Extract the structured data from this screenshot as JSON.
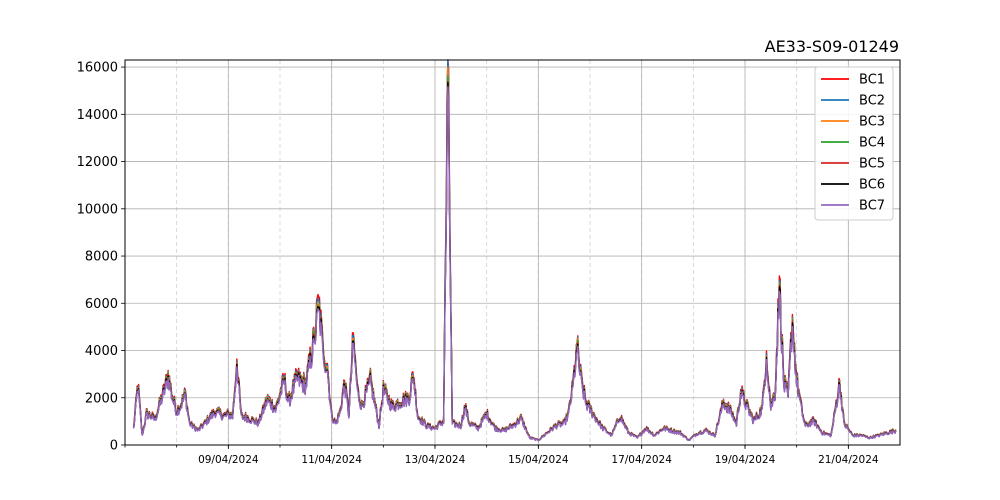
{
  "chart_data": {
    "type": "line",
    "title": "AE33-S09-01249",
    "xlabel": "",
    "ylabel": "",
    "x_start": "07/04/2024",
    "x_end": "21/04/2024",
    "xlim": [
      "07/04/2024",
      "22/04/2024"
    ],
    "ylim": [
      0,
      16300
    ],
    "y_ticks": [
      0,
      2000,
      4000,
      6000,
      8000,
      10000,
      12000,
      14000,
      16000
    ],
    "x_ticks": [
      "09/04/2024",
      "11/04/2024",
      "13/04/2024",
      "15/04/2024",
      "17/04/2024",
      "19/04/2024",
      "21/04/2024"
    ],
    "grid": true,
    "legend_position": "top-right",
    "series": [
      {
        "name": "BC1",
        "color": "#ff0000",
        "scale": 1.07
      },
      {
        "name": "BC2",
        "color": "#1f77b4",
        "scale": 1.05
      },
      {
        "name": "BC3",
        "color": "#ff7f0e",
        "scale": 1.03
      },
      {
        "name": "BC4",
        "color": "#2ca02c",
        "scale": 1.015
      },
      {
        "name": "BC5",
        "color": "#d62728",
        "scale": 1.0
      },
      {
        "name": "BC6",
        "color": "#000000",
        "scale": 0.99
      },
      {
        "name": "BC7",
        "color": "#9467bd",
        "scale": 0.97
      }
    ],
    "profile": [
      [
        "07/04/2024 04:00",
        700
      ],
      [
        "07/04/2024 06:00",
        2500
      ],
      [
        "07/04/2024 08:00",
        400
      ],
      [
        "07/04/2024 10:00",
        1300
      ],
      [
        "07/04/2024 14:00",
        1100
      ],
      [
        "07/04/2024 18:00",
        2200
      ],
      [
        "07/04/2024 20:00",
        2900
      ],
      [
        "07/04/2024 22:00",
        2000
      ],
      [
        "08/04/2024 00:00",
        1400
      ],
      [
        "08/04/2024 02:00",
        1700
      ],
      [
        "08/04/2024 04:00",
        2100
      ],
      [
        "08/04/2024 06:00",
        900
      ],
      [
        "08/04/2024 10:00",
        600
      ],
      [
        "08/04/2024 14:00",
        1000
      ],
      [
        "08/04/2024 18:00",
        1400
      ],
      [
        "08/04/2024 22:00",
        1200
      ],
      [
        "09/04/2024 00:00",
        1300
      ],
      [
        "09/04/2024 02:00",
        1200
      ],
      [
        "09/04/2024 04:00",
        3400
      ],
      [
        "09/04/2024 06:00",
        1200
      ],
      [
        "09/04/2024 10:00",
        1100
      ],
      [
        "09/04/2024 14:00",
        900
      ],
      [
        "09/04/2024 18:00",
        1900
      ],
      [
        "09/04/2024 22:00",
        1500
      ],
      [
        "10/04/2024 02:00",
        2700
      ],
      [
        "10/04/2024 04:00",
        1800
      ],
      [
        "10/04/2024 08:00",
        2800
      ],
      [
        "10/04/2024 12:00",
        2500
      ],
      [
        "10/04/2024 16:00",
        4500
      ],
      [
        "10/04/2024 18:00",
        5800
      ],
      [
        "10/04/2024 20:00",
        4000
      ],
      [
        "10/04/2024 22:00",
        3200
      ],
      [
        "11/04/2024 00:00",
        1200
      ],
      [
        "11/04/2024 02:00",
        900
      ],
      [
        "11/04/2024 04:00",
        1400
      ],
      [
        "11/04/2024 06:00",
        2600
      ],
      [
        "11/04/2024 08:00",
        1300
      ],
      [
        "11/04/2024 10:00",
        4400
      ],
      [
        "11/04/2024 12:00",
        2300
      ],
      [
        "11/04/2024 14:00",
        1600
      ],
      [
        "11/04/2024 18:00",
        2700
      ],
      [
        "11/04/2024 22:00",
        800
      ],
      [
        "12/04/2024 00:00",
        2300
      ],
      [
        "12/04/2024 04:00",
        1600
      ],
      [
        "12/04/2024 08:00",
        1800
      ],
      [
        "12/04/2024 12:00",
        2000
      ],
      [
        "12/04/2024 14:00",
        2900
      ],
      [
        "12/04/2024 16:00",
        1200
      ],
      [
        "12/04/2024 20:00",
        800
      ],
      [
        "13/04/2024 00:00",
        700
      ],
      [
        "13/04/2024 04:00",
        1000
      ],
      [
        "13/04/2024 06:00",
        15500
      ],
      [
        "13/04/2024 08:00",
        900
      ],
      [
        "13/04/2024 12:00",
        800
      ],
      [
        "13/04/2024 14:00",
        1600
      ],
      [
        "13/04/2024 16:00",
        900
      ],
      [
        "13/04/2024 20:00",
        700
      ],
      [
        "14/04/2024 00:00",
        1300
      ],
      [
        "14/04/2024 04:00",
        700
      ],
      [
        "14/04/2024 08:00",
        600
      ],
      [
        "14/04/2024 12:00",
        800
      ],
      [
        "14/04/2024 16:00",
        1100
      ],
      [
        "14/04/2024 20:00",
        300
      ],
      [
        "15/04/2024 00:00",
        200
      ],
      [
        "15/04/2024 04:00",
        500
      ],
      [
        "15/04/2024 08:00",
        800
      ],
      [
        "15/04/2024 12:00",
        900
      ],
      [
        "15/04/2024 14:00",
        1300
      ],
      [
        "15/04/2024 16:00",
        2400
      ],
      [
        "15/04/2024 18:00",
        4100
      ],
      [
        "15/04/2024 20:00",
        2600
      ],
      [
        "15/04/2024 22:00",
        1800
      ],
      [
        "16/04/2024 02:00",
        1200
      ],
      [
        "16/04/2024 06:00",
        700
      ],
      [
        "16/04/2024 10:00",
        400
      ],
      [
        "16/04/2024 14:00",
        1200
      ],
      [
        "16/04/2024 18:00",
        500
      ],
      [
        "16/04/2024 22:00",
        300
      ],
      [
        "17/04/2024 02:00",
        700
      ],
      [
        "17/04/2024 06:00",
        400
      ],
      [
        "17/04/2024 10:00",
        700
      ],
      [
        "17/04/2024 14:00",
        600
      ],
      [
        "17/04/2024 18:00",
        500
      ],
      [
        "17/04/2024 22:00",
        200
      ],
      [
        "18/04/2024 02:00",
        500
      ],
      [
        "18/04/2024 06:00",
        600
      ],
      [
        "18/04/2024 10:00",
        400
      ],
      [
        "18/04/2024 14:00",
        1800
      ],
      [
        "18/04/2024 18:00",
        1300
      ],
      [
        "18/04/2024 20:00",
        900
      ],
      [
        "18/04/2024 22:00",
        2200
      ],
      [
        "19/04/2024 02:00",
        1400
      ],
      [
        "19/04/2024 04:00",
        1000
      ],
      [
        "19/04/2024 08:00",
        1500
      ],
      [
        "19/04/2024 10:00",
        3700
      ],
      [
        "19/04/2024 12:00",
        1600
      ],
      [
        "19/04/2024 14:00",
        2200
      ],
      [
        "19/04/2024 16:00",
        6700
      ],
      [
        "19/04/2024 18:00",
        2600
      ],
      [
        "19/04/2024 20:00",
        2000
      ],
      [
        "19/04/2024 22:00",
        5200
      ],
      [
        "20/04/2024 00:00",
        2700
      ],
      [
        "20/04/2024 02:00",
        1600
      ],
      [
        "20/04/2024 04:00",
        800
      ],
      [
        "20/04/2024 08:00",
        1000
      ],
      [
        "20/04/2024 12:00",
        500
      ],
      [
        "20/04/2024 16:00",
        400
      ],
      [
        "20/04/2024 20:00",
        2600
      ],
      [
        "20/04/2024 22:00",
        900
      ],
      [
        "21/04/2024 02:00",
        400
      ],
      [
        "21/04/2024 06:00",
        400
      ],
      [
        "21/04/2024 10:00",
        300
      ],
      [
        "21/04/2024 14:00",
        400
      ],
      [
        "21/04/2024 18:00",
        500
      ],
      [
        "21/04/2024 22:00",
        600
      ]
    ]
  }
}
